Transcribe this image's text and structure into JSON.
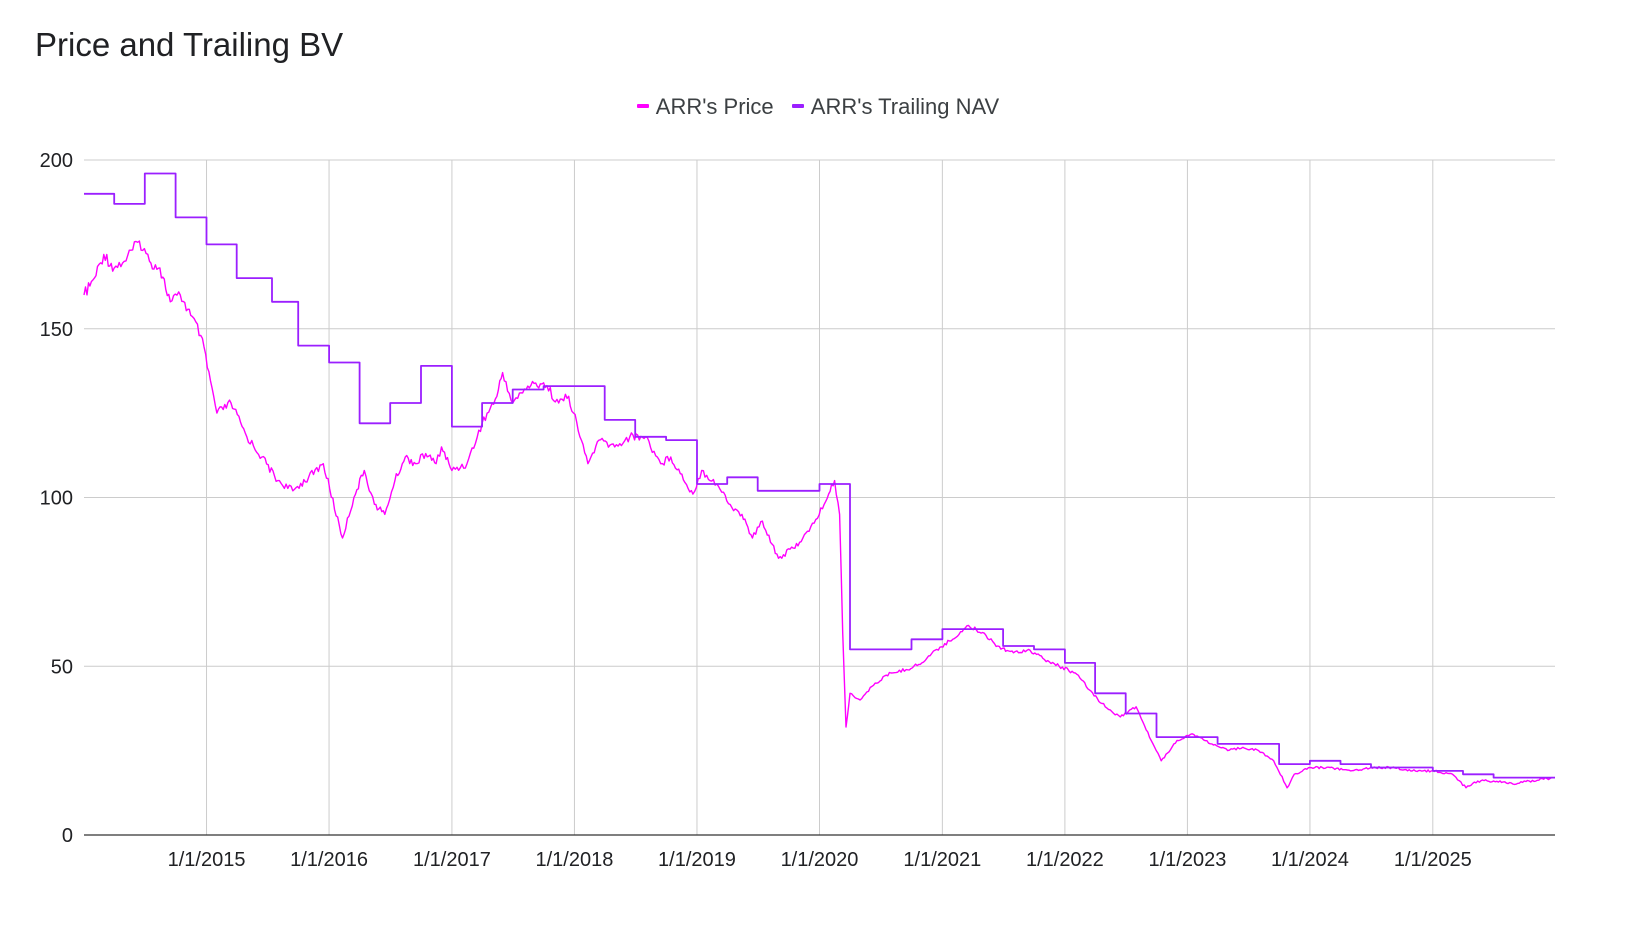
{
  "chart_data": {
    "type": "line",
    "title": "Price and Trailing BV",
    "xlabel": "",
    "ylabel": "",
    "ylim": [
      0,
      200
    ],
    "xlim": [
      "2014-01-01",
      "2025-12-31"
    ],
    "y_ticks": [
      "0",
      "50",
      "100",
      "150",
      "200"
    ],
    "x_ticks": [
      {
        "label": "1/1/2015",
        "date": "2015-01-01"
      },
      {
        "label": "1/1/2016",
        "date": "2016-01-01"
      },
      {
        "label": "1/1/2017",
        "date": "2017-01-01"
      },
      {
        "label": "1/1/2018",
        "date": "2018-01-01"
      },
      {
        "label": "1/1/2019",
        "date": "2019-01-01"
      },
      {
        "label": "1/1/2020",
        "date": "2020-01-01"
      },
      {
        "label": "1/1/2021",
        "date": "2021-01-01"
      },
      {
        "label": "1/1/2022",
        "date": "2022-01-01"
      },
      {
        "label": "1/1/2023",
        "date": "2023-01-01"
      },
      {
        "label": "1/1/2024",
        "date": "2024-01-01"
      },
      {
        "label": "1/1/2025",
        "date": "2025-01-01"
      }
    ],
    "grid": true,
    "legend_position": "top",
    "series": [
      {
        "name": "ARR's Price",
        "color": "#ff00ff",
        "style": "line",
        "points": [
          [
            "2014-01-01",
            160
          ],
          [
            "2014-02-01",
            165
          ],
          [
            "2014-03-01",
            172
          ],
          [
            "2014-04-01",
            168
          ],
          [
            "2014-05-01",
            170
          ],
          [
            "2014-06-15",
            176
          ],
          [
            "2014-07-15",
            170
          ],
          [
            "2014-08-15",
            168
          ],
          [
            "2014-09-15",
            158
          ],
          [
            "2014-10-15",
            160
          ],
          [
            "2014-11-15",
            154
          ],
          [
            "2014-12-15",
            148
          ],
          [
            "2015-02-01",
            125
          ],
          [
            "2015-03-15",
            128
          ],
          [
            "2015-05-01",
            118
          ],
          [
            "2015-06-15",
            112
          ],
          [
            "2015-08-01",
            105
          ],
          [
            "2015-09-15",
            102
          ],
          [
            "2015-11-01",
            106
          ],
          [
            "2015-12-15",
            110
          ],
          [
            "2016-02-10",
            88
          ],
          [
            "2016-03-15",
            100
          ],
          [
            "2016-04-15",
            108
          ],
          [
            "2016-05-15",
            98
          ],
          [
            "2016-06-15",
            95
          ],
          [
            "2016-07-15",
            105
          ],
          [
            "2016-08-15",
            112
          ],
          [
            "2016-09-15",
            110
          ],
          [
            "2016-10-15",
            113
          ],
          [
            "2016-11-15",
            110
          ],
          [
            "2016-12-01",
            115
          ],
          [
            "2017-01-01",
            108
          ],
          [
            "2017-02-15",
            110
          ],
          [
            "2017-04-01",
            122
          ],
          [
            "2017-05-15",
            130
          ],
          [
            "2017-06-01",
            137
          ],
          [
            "2017-07-01",
            128
          ],
          [
            "2017-08-15",
            133
          ],
          [
            "2017-10-01",
            134
          ],
          [
            "2017-11-15",
            128
          ],
          [
            "2017-12-15",
            130
          ],
          [
            "2018-02-10",
            110
          ],
          [
            "2018-03-15",
            117
          ],
          [
            "2018-05-01",
            115
          ],
          [
            "2018-06-15",
            118
          ],
          [
            "2018-08-01",
            118
          ],
          [
            "2018-09-15",
            110
          ],
          [
            "2018-10-15",
            112
          ],
          [
            "2018-12-20",
            101
          ],
          [
            "2019-01-15",
            108
          ],
          [
            "2019-03-01",
            104
          ],
          [
            "2019-04-15",
            97
          ],
          [
            "2019-05-15",
            95
          ],
          [
            "2019-06-15",
            88
          ],
          [
            "2019-07-15",
            93
          ],
          [
            "2019-09-01",
            82
          ],
          [
            "2019-10-15",
            85
          ],
          [
            "2019-12-01",
            90
          ],
          [
            "2020-01-15",
            98
          ],
          [
            "2020-02-15",
            105
          ],
          [
            "2020-03-01",
            95
          ],
          [
            "2020-03-10",
            60
          ],
          [
            "2020-03-20",
            32
          ],
          [
            "2020-04-01",
            42
          ],
          [
            "2020-05-01",
            40
          ],
          [
            "2020-06-15",
            45
          ],
          [
            "2020-08-01",
            48
          ],
          [
            "2020-09-15",
            49
          ],
          [
            "2020-11-01",
            51
          ],
          [
            "2020-12-15",
            55
          ],
          [
            "2021-02-01",
            58
          ],
          [
            "2021-03-15",
            62
          ],
          [
            "2021-05-01",
            60
          ],
          [
            "2021-06-15",
            56
          ],
          [
            "2021-08-01",
            54
          ],
          [
            "2021-09-15",
            55
          ],
          [
            "2021-11-01",
            52
          ],
          [
            "2021-12-15",
            50
          ],
          [
            "2022-02-01",
            48
          ],
          [
            "2022-03-15",
            43
          ],
          [
            "2022-05-01",
            38
          ],
          [
            "2022-06-15",
            35
          ],
          [
            "2022-08-01",
            38
          ],
          [
            "2022-09-15",
            28
          ],
          [
            "2022-10-15",
            22
          ],
          [
            "2022-12-01",
            28
          ],
          [
            "2023-01-15",
            30
          ],
          [
            "2023-03-15",
            27
          ],
          [
            "2023-05-01",
            25
          ],
          [
            "2023-06-15",
            26
          ],
          [
            "2023-08-01",
            25
          ],
          [
            "2023-09-15",
            22
          ],
          [
            "2023-10-25",
            14
          ],
          [
            "2023-11-15",
            18
          ],
          [
            "2024-01-01",
            20
          ],
          [
            "2024-03-01",
            20
          ],
          [
            "2024-05-01",
            19
          ],
          [
            "2024-07-01",
            20
          ],
          [
            "2024-09-01",
            20
          ],
          [
            "2024-11-01",
            19
          ],
          [
            "2025-01-01",
            19
          ],
          [
            "2025-03-01",
            18
          ],
          [
            "2025-04-10",
            14
          ],
          [
            "2025-05-15",
            16
          ],
          [
            "2025-07-01",
            16
          ],
          [
            "2025-09-01",
            15
          ],
          [
            "2025-10-15",
            16
          ],
          [
            "2025-12-31",
            17
          ]
        ]
      },
      {
        "name": "ARR's Trailing NAV",
        "color": "#9b1fff",
        "style": "step",
        "points": [
          [
            "2014-01-01",
            190
          ],
          [
            "2014-04-01",
            187
          ],
          [
            "2014-07-01",
            196
          ],
          [
            "2014-10-01",
            183
          ],
          [
            "2015-01-01",
            175
          ],
          [
            "2015-04-01",
            165
          ],
          [
            "2015-07-15",
            158
          ],
          [
            "2015-10-01",
            145
          ],
          [
            "2016-01-01",
            140
          ],
          [
            "2016-04-01",
            122
          ],
          [
            "2016-07-01",
            128
          ],
          [
            "2016-10-01",
            139
          ],
          [
            "2017-01-01",
            121
          ],
          [
            "2017-04-01",
            128
          ],
          [
            "2017-07-01",
            132
          ],
          [
            "2017-10-01",
            133
          ],
          [
            "2018-04-01",
            123
          ],
          [
            "2018-07-01",
            118
          ],
          [
            "2018-10-01",
            117
          ],
          [
            "2019-01-01",
            104
          ],
          [
            "2019-04-01",
            106
          ],
          [
            "2019-07-01",
            102
          ],
          [
            "2019-10-01",
            102
          ],
          [
            "2020-01-01",
            104
          ],
          [
            "2020-04-01",
            55
          ],
          [
            "2020-10-01",
            58
          ],
          [
            "2021-01-01",
            61
          ],
          [
            "2021-07-01",
            56
          ],
          [
            "2021-10-01",
            55
          ],
          [
            "2022-01-01",
            51
          ],
          [
            "2022-04-01",
            42
          ],
          [
            "2022-07-01",
            36
          ],
          [
            "2022-10-01",
            29
          ],
          [
            "2023-04-01",
            27
          ],
          [
            "2023-10-01",
            21
          ],
          [
            "2024-01-01",
            22
          ],
          [
            "2024-04-01",
            21
          ],
          [
            "2024-07-01",
            20
          ],
          [
            "2025-01-01",
            19
          ],
          [
            "2025-04-01",
            18
          ],
          [
            "2025-07-01",
            17
          ],
          [
            "2025-10-01",
            17
          ],
          [
            "2025-12-31",
            17
          ]
        ]
      }
    ]
  }
}
